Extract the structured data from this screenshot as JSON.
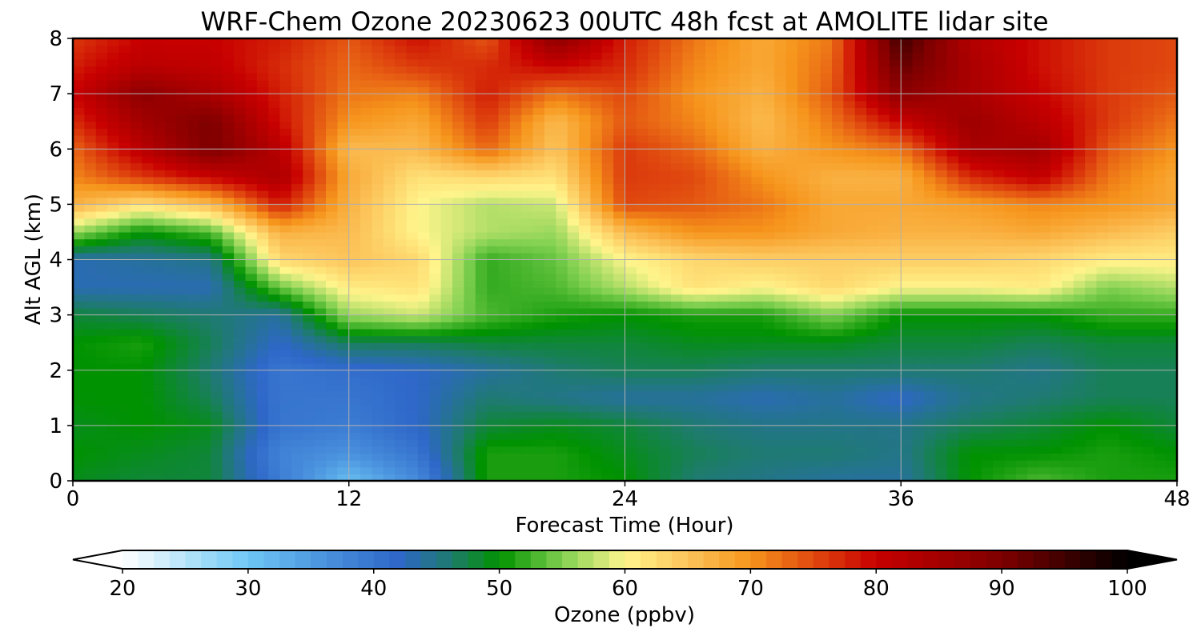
{
  "chart_data": {
    "type": "heatmap",
    "title": "WRF-Chem Ozone  20230623 00UTC 48h fcst at AMOLITE lidar site",
    "xlabel": "Forecast Time (Hour)",
    "ylabel": "Alt AGL (km)",
    "x_ticks": [
      0,
      12,
      24,
      36,
      48
    ],
    "y_ticks": [
      0,
      1,
      2,
      3,
      4,
      5,
      6,
      7,
      8
    ],
    "xlim": [
      0,
      48
    ],
    "ylim": [
      0,
      8
    ],
    "grid": true,
    "units": "ppbv",
    "x": [
      0,
      3,
      6,
      9,
      12,
      15,
      18,
      21,
      24,
      27,
      30,
      33,
      36,
      39,
      42,
      45,
      48
    ],
    "y": [
      0,
      0.5,
      1,
      1.5,
      2,
      2.5,
      3,
      3.5,
      4,
      4.5,
      5,
      5.5,
      6,
      6.5,
      7,
      7.5,
      8
    ],
    "z": [
      [
        49,
        48,
        48,
        39,
        31,
        37,
        51,
        51,
        50,
        46,
        45,
        44,
        44,
        50,
        53,
        51,
        51
      ],
      [
        50,
        49,
        48,
        38,
        36,
        40,
        51,
        51,
        49,
        47,
        46,
        46,
        45,
        50,
        50,
        51,
        50
      ],
      [
        49,
        50,
        49,
        40,
        39,
        42,
        48,
        49,
        48,
        46,
        45,
        45,
        45,
        47,
        48,
        50,
        48
      ],
      [
        50,
        50,
        47,
        40,
        40,
        42,
        46,
        45,
        44,
        44,
        43,
        44,
        42,
        45,
        46,
        47,
        47
      ],
      [
        50,
        50,
        46,
        40,
        41,
        42,
        44,
        46,
        47,
        47,
        46,
        46,
        46,
        46,
        45,
        47,
        47
      ],
      [
        50,
        51,
        47,
        42,
        47,
        47,
        48,
        48,
        48,
        49,
        49,
        49,
        48,
        48,
        47,
        48,
        48
      ],
      [
        48,
        47,
        46,
        44,
        56,
        58,
        53,
        51,
        50,
        51,
        51,
        55,
        50,
        50,
        50,
        52,
        52
      ],
      [
        43,
        43,
        43,
        54,
        61,
        62,
        52,
        53,
        57,
        62,
        60,
        63,
        60,
        60,
        61,
        55,
        57
      ],
      [
        43,
        44,
        45,
        63,
        65,
        63,
        52,
        54,
        60,
        63,
        64,
        64,
        64,
        64,
        63,
        61,
        61
      ],
      [
        56,
        50,
        53,
        67,
        66,
        60,
        57,
        56,
        66,
        70,
        70,
        68,
        67,
        67,
        68,
        66,
        64
      ],
      [
        67,
        62,
        66,
        78,
        67,
        60,
        57,
        58,
        75,
        74,
        72,
        68,
        68,
        69,
        71,
        70,
        68
      ],
      [
        71,
        76,
        80,
        84,
        68,
        62,
        63,
        62,
        76,
        75,
        70,
        67,
        67,
        77,
        81,
        72,
        68
      ],
      [
        73,
        82,
        90,
        82,
        66,
        66,
        73,
        65,
        76,
        73,
        67,
        70,
        72,
        84,
        85,
        74,
        70
      ],
      [
        77,
        85,
        90,
        79,
        70,
        68,
        76,
        66,
        74,
        71,
        66,
        72,
        80,
        86,
        82,
        76,
        72
      ],
      [
        80,
        88,
        84,
        78,
        72,
        71,
        78,
        72,
        75,
        70,
        67,
        74,
        88,
        84,
        80,
        76,
        74
      ],
      [
        78,
        82,
        81,
        77,
        73,
        76,
        77,
        80,
        77,
        71,
        68,
        73,
        92,
        84,
        79,
        76,
        75
      ],
      [
        76,
        80,
        80,
        78,
        74,
        79,
        74,
        88,
        78,
        72,
        68,
        72,
        95,
        83,
        79,
        76,
        75
      ]
    ],
    "colorbar": {
      "label": "Ozone  (ppbv)",
      "min": 20,
      "max": 100,
      "ticks": [
        20,
        30,
        40,
        50,
        60,
        70,
        80,
        90,
        100
      ],
      "extend": "both",
      "stops": [
        {
          "v": 20,
          "c": "#ffffff"
        },
        {
          "v": 30,
          "c": "#6ec8f5"
        },
        {
          "v": 36,
          "c": "#4a92de"
        },
        {
          "v": 42,
          "c": "#2e67c8"
        },
        {
          "v": 46,
          "c": "#1f7a72"
        },
        {
          "v": 50,
          "c": "#009200"
        },
        {
          "v": 55,
          "c": "#80d050"
        },
        {
          "v": 60,
          "c": "#fff58c"
        },
        {
          "v": 65,
          "c": "#fcc45a"
        },
        {
          "v": 70,
          "c": "#f6951c"
        },
        {
          "v": 75,
          "c": "#e0480f"
        },
        {
          "v": 80,
          "c": "#c80000"
        },
        {
          "v": 90,
          "c": "#7e0000"
        },
        {
          "v": 100,
          "c": "#000000"
        }
      ]
    }
  }
}
